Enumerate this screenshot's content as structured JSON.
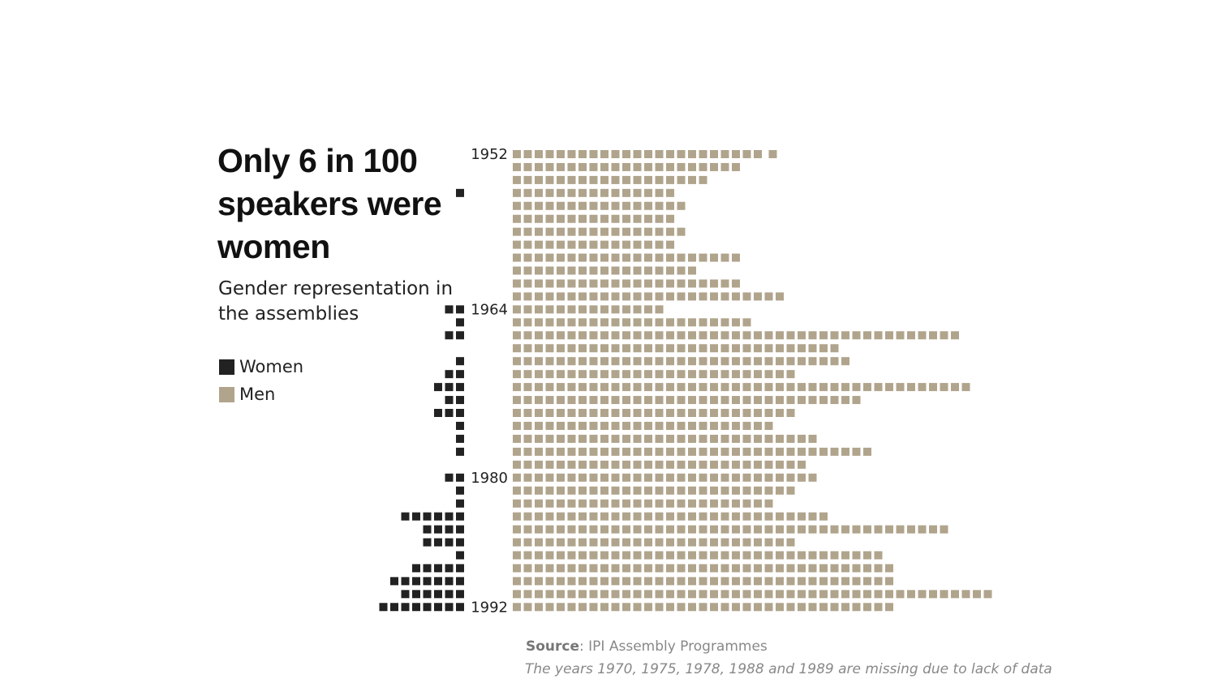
{
  "header": {
    "title": "Only 6 in 100 speakers were women",
    "subtitle": "Gender representation in the assemblies"
  },
  "legend": [
    {
      "label": "Women",
      "color": "#222222"
    },
    {
      "label": "Men",
      "color": "#b0a48c"
    }
  ],
  "footer": {
    "source_label": "Source",
    "source_text": ": IPI Assembly Programmes",
    "note": "The years 1970, 1975, 1978, 1988 and 1989 are missing due to lack of data"
  },
  "chart_data": {
    "type": "bar",
    "subtype": "unit-square (waffle) diverging horizontal bars; 1 square = 1 speaker",
    "title": "Only 6 in 100 speakers were women",
    "subtitle": "Gender representation in the assemblies",
    "labeled_years": [
      "1952",
      "1964",
      "1980",
      "1992"
    ],
    "categories": [
      "1952",
      "1953",
      "1954",
      "1955",
      "1956",
      "1957",
      "1958",
      "1959",
      "1960",
      "1961",
      "1962",
      "1963",
      "1964",
      "1965",
      "1966",
      "1967",
      "1968",
      "1969",
      "1971",
      "1972",
      "1973",
      "1974",
      "1976",
      "1977",
      "1979",
      "1980",
      "1981",
      "1982",
      "1983",
      "1984",
      "1985",
      "1986",
      "1987",
      "1990",
      "1991",
      "1992"
    ],
    "series": [
      {
        "name": "Women",
        "color": "#222222",
        "direction": "left",
        "values": [
          0,
          0,
          0,
          1,
          0,
          0,
          0,
          0,
          0,
          0,
          0,
          0,
          2,
          1,
          2,
          0,
          1,
          2,
          3,
          2,
          3,
          1,
          1,
          1,
          0,
          2,
          1,
          1,
          6,
          4,
          4,
          1,
          5,
          7,
          6,
          8
        ]
      },
      {
        "name": "Men",
        "color": "#b0a48c",
        "direction": "right",
        "values": [
          24,
          21,
          18,
          15,
          16,
          15,
          16,
          15,
          21,
          17,
          21,
          25,
          14,
          22,
          41,
          30,
          31,
          26,
          42,
          32,
          26,
          24,
          28,
          33,
          27,
          28,
          26,
          24,
          29,
          40,
          26,
          34,
          35,
          35,
          44,
          35
        ]
      }
    ],
    "missing_years": [
      "1970",
      "1975",
      "1978",
      "1988",
      "1989"
    ],
    "legend_position": "left"
  }
}
